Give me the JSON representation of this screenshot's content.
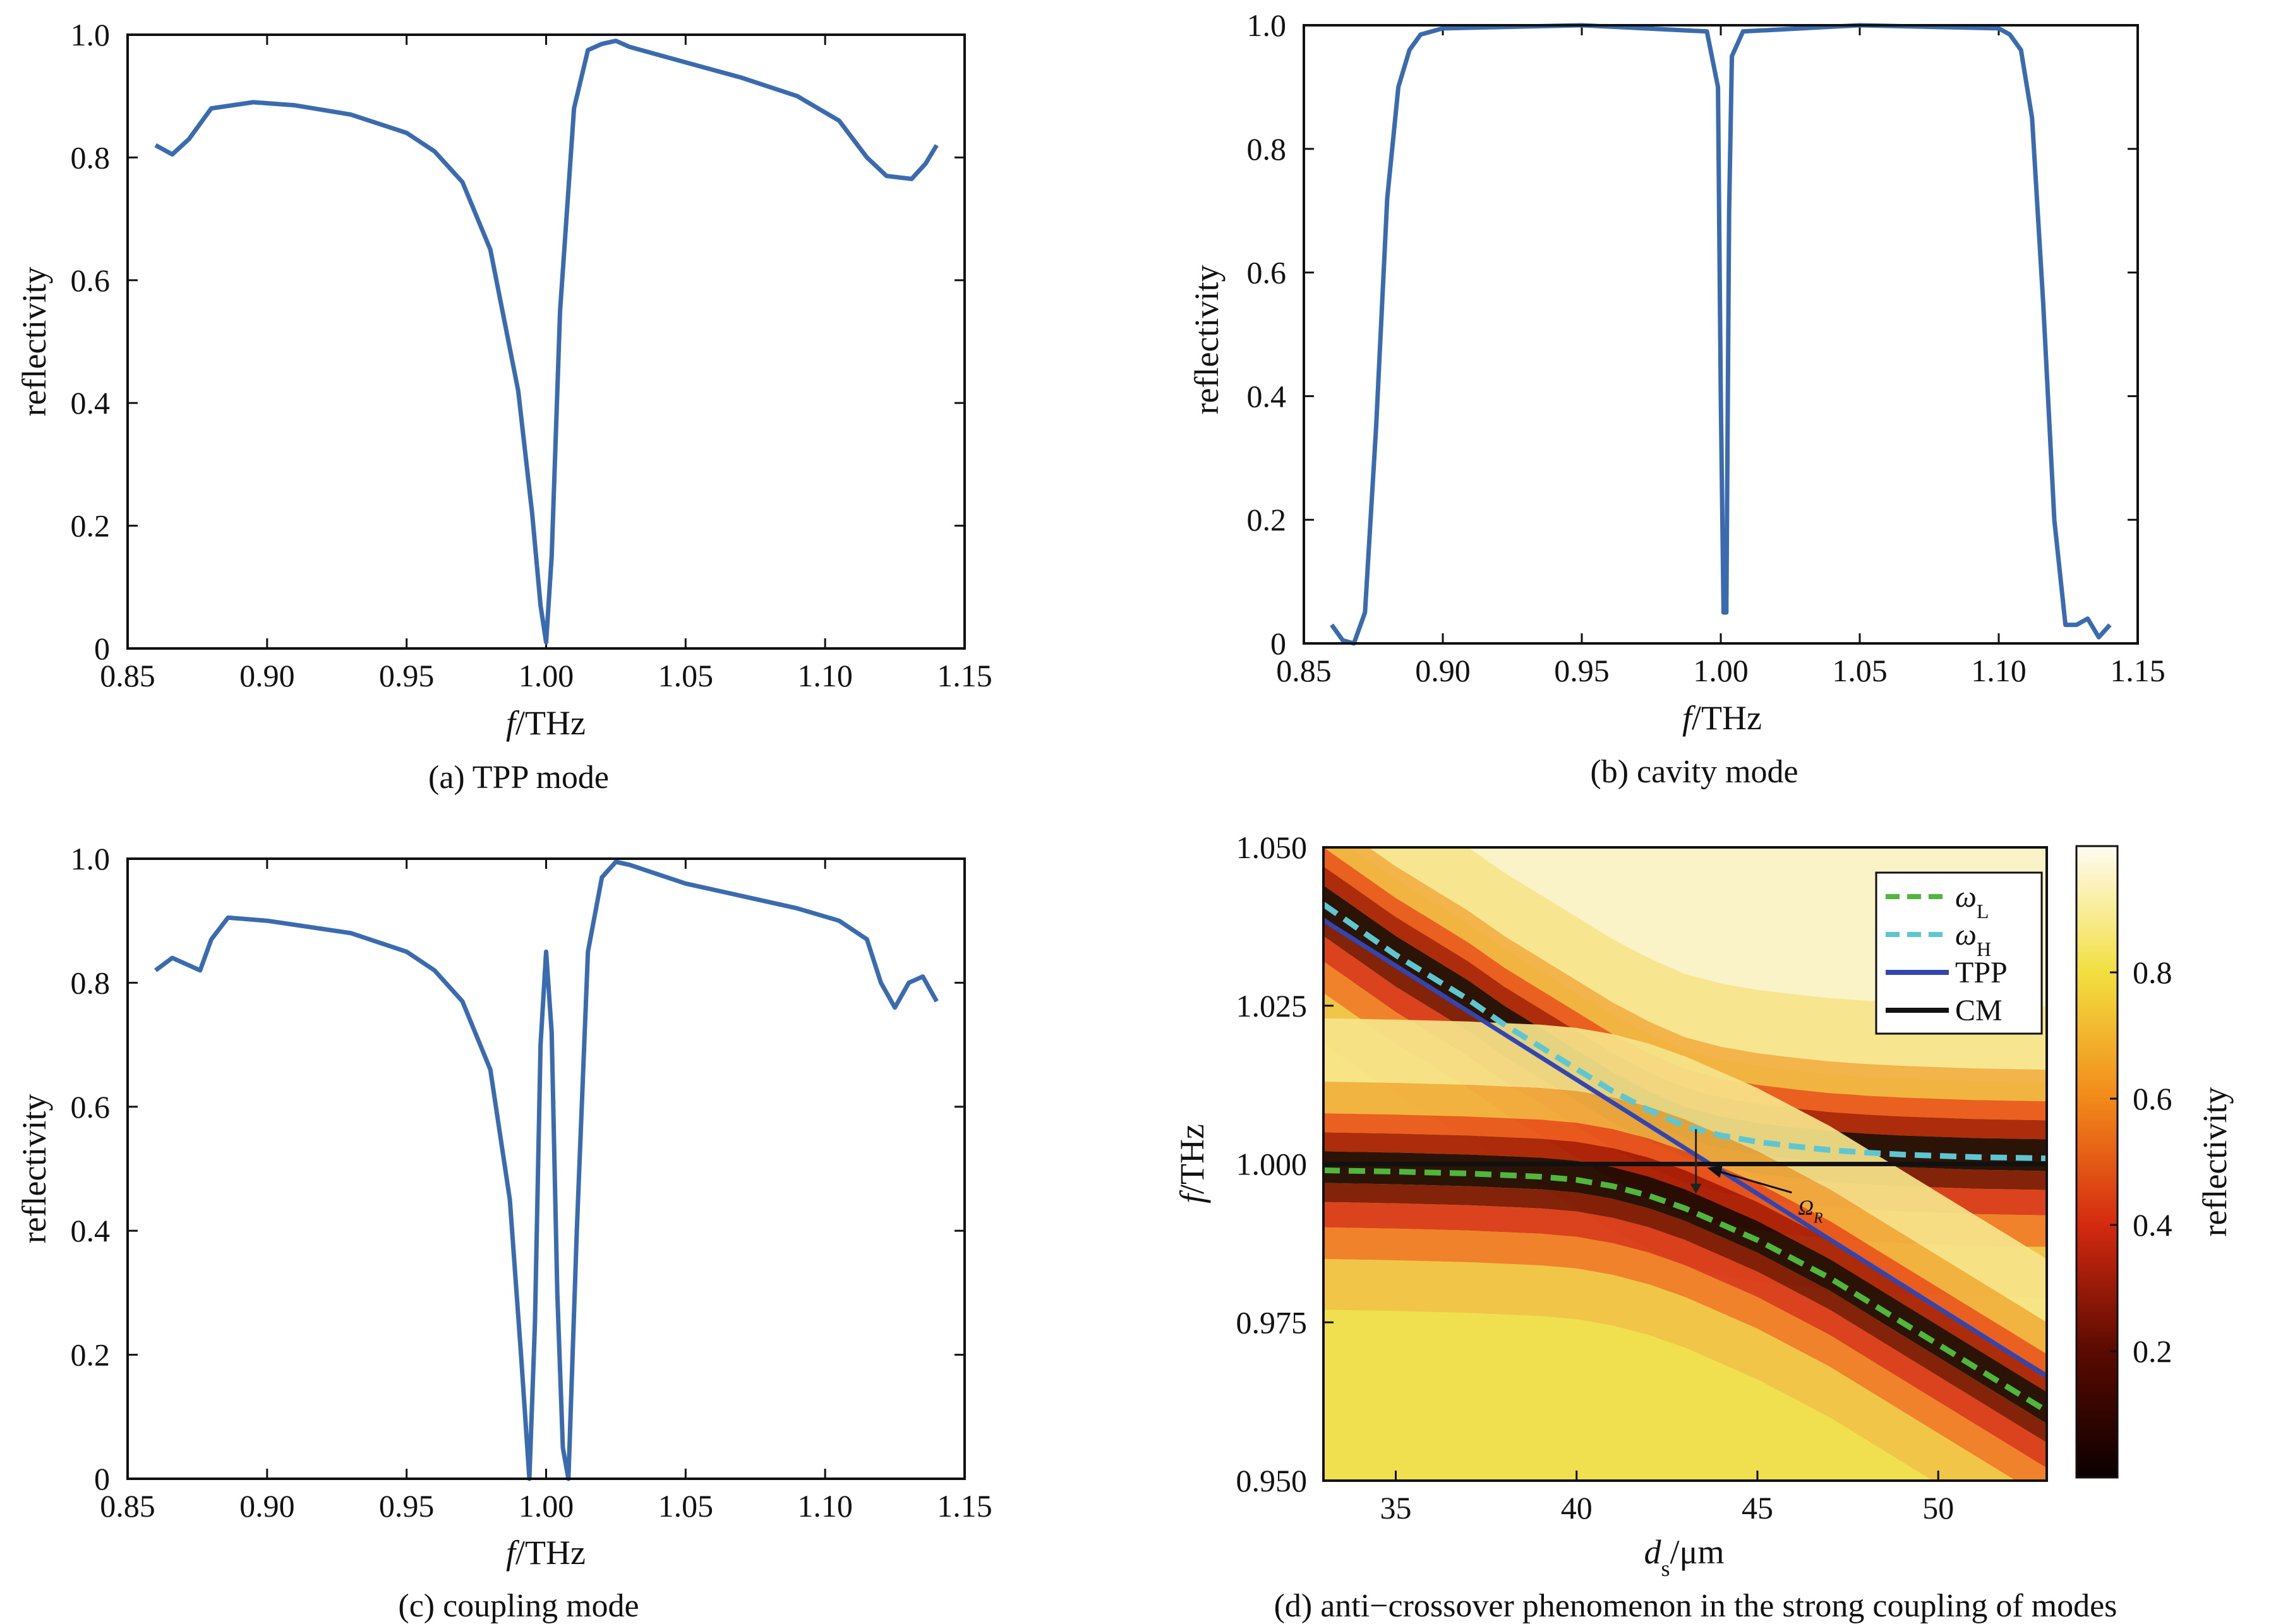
{
  "colors": {
    "curve": "#3A6BAE",
    "tpp_line": "#3346B0",
    "cm_line": "#111111",
    "omega_L": "#4FB83C",
    "omega_H": "#5EC6D0",
    "axis": "#111111"
  },
  "chart_data": [
    {
      "id": "a",
      "type": "line",
      "caption": "(a) TPP mode",
      "xlabel_italic": "f",
      "xlabel_rest": "/THz",
      "ylabel": "reflectivity",
      "xlim": [
        0.85,
        1.15
      ],
      "ylim": [
        0,
        1.0
      ],
      "xticks": [
        "0.85",
        "0.90",
        "0.95",
        "1.00",
        "1.05",
        "1.10",
        "1.15"
      ],
      "yticks": [
        "0",
        "0.2",
        "0.4",
        "0.6",
        "0.8",
        "1.0"
      ],
      "series": [
        {
          "x": [
            0.86,
            0.866,
            0.872,
            0.88,
            0.895,
            0.91,
            0.93,
            0.95,
            0.96,
            0.97,
            0.98,
            0.99,
            0.995,
            0.998,
            1.0,
            1.002,
            1.005,
            1.01,
            1.015,
            1.02,
            1.025,
            1.03,
            1.05,
            1.07,
            1.09,
            1.105,
            1.115,
            1.122,
            1.131,
            1.136,
            1.14
          ],
          "y": [
            0.82,
            0.805,
            0.83,
            0.88,
            0.89,
            0.885,
            0.87,
            0.84,
            0.81,
            0.76,
            0.65,
            0.42,
            0.22,
            0.07,
            0.01,
            0.15,
            0.55,
            0.88,
            0.975,
            0.985,
            0.99,
            0.98,
            0.955,
            0.93,
            0.9,
            0.86,
            0.8,
            0.77,
            0.765,
            0.79,
            0.82
          ]
        }
      ]
    },
    {
      "id": "b",
      "type": "line",
      "caption": "(b) cavity mode",
      "xlabel_italic": "f",
      "xlabel_rest": "/THz",
      "ylabel": "reflectivity",
      "xlim": [
        0.85,
        1.15
      ],
      "ylim": [
        0,
        1.0
      ],
      "xticks": [
        "0.85",
        "0.90",
        "0.95",
        "1.00",
        "1.05",
        "1.10",
        "1.15"
      ],
      "yticks": [
        "0",
        "0.2",
        "0.4",
        "0.6",
        "0.8",
        "1.0"
      ],
      "series": [
        {
          "x": [
            0.86,
            0.864,
            0.868,
            0.872,
            0.876,
            0.88,
            0.884,
            0.888,
            0.892,
            0.9,
            0.95,
            0.995,
            0.999,
            1.0,
            1.001,
            1.002,
            1.003,
            1.004,
            1.008,
            1.05,
            1.1,
            1.104,
            1.108,
            1.112,
            1.116,
            1.12,
            1.124,
            1.128,
            1.132,
            1.136,
            1.14
          ],
          "y": [
            0.03,
            0.005,
            0.0,
            0.05,
            0.35,
            0.72,
            0.9,
            0.96,
            0.985,
            0.995,
            1.0,
            0.99,
            0.9,
            0.4,
            0.05,
            0.05,
            0.7,
            0.95,
            0.99,
            1.0,
            0.995,
            0.985,
            0.96,
            0.85,
            0.55,
            0.2,
            0.03,
            0.03,
            0.04,
            0.01,
            0.03
          ]
        }
      ]
    },
    {
      "id": "c",
      "type": "line",
      "caption": "(c) coupling mode",
      "xlabel_italic": "f",
      "xlabel_rest": "/THz",
      "ylabel": "reflectivity",
      "xlim": [
        0.85,
        1.15
      ],
      "ylim": [
        0,
        1.0
      ],
      "xticks": [
        "0.85",
        "0.90",
        "0.95",
        "1.00",
        "1.05",
        "1.10",
        "1.15"
      ],
      "yticks": [
        "0",
        "0.2",
        "0.4",
        "0.6",
        "0.8",
        "1.0"
      ],
      "series": [
        {
          "x": [
            0.86,
            0.866,
            0.871,
            0.876,
            0.88,
            0.886,
            0.9,
            0.93,
            0.95,
            0.96,
            0.97,
            0.98,
            0.987,
            0.991,
            0.994,
            0.996,
            0.998,
            1.0,
            1.002,
            1.004,
            1.006,
            1.008,
            1.011,
            1.015,
            1.02,
            1.025,
            1.03,
            1.05,
            1.07,
            1.09,
            1.105,
            1.115,
            1.12,
            1.125,
            1.13,
            1.135,
            1.14
          ],
          "y": [
            0.82,
            0.84,
            0.83,
            0.82,
            0.87,
            0.905,
            0.9,
            0.88,
            0.85,
            0.82,
            0.77,
            0.66,
            0.45,
            0.2,
            0.0,
            0.25,
            0.7,
            0.85,
            0.72,
            0.3,
            0.05,
            0.0,
            0.4,
            0.85,
            0.97,
            0.995,
            0.99,
            0.96,
            0.94,
            0.92,
            0.9,
            0.87,
            0.8,
            0.76,
            0.8,
            0.81,
            0.77
          ]
        }
      ]
    },
    {
      "id": "d",
      "type": "heatmap",
      "caption": "(d)  anti−crossover phenomenon in the strong coupling of modes",
      "xlabel_italic": "d",
      "xlabel_sub": "s",
      "xlabel_rest": "/μm",
      "ylabel_italic": "f",
      "ylabel_rest": "/THz",
      "xlim": [
        33,
        53
      ],
      "ylim": [
        0.95,
        1.05
      ],
      "xticks": [
        35,
        40,
        45,
        50
      ],
      "xtick_labels": [
        "35",
        "40",
        "45",
        "50"
      ],
      "yticks": [
        0.95,
        0.975,
        1.0,
        1.025,
        1.05
      ],
      "ytick_labels": [
        "0.950",
        "0.975",
        "1.000",
        "1.025",
        "1.050"
      ],
      "colorbar_label": "reflectivity",
      "colorbar_ticks": [
        0.2,
        0.4,
        0.6,
        0.8
      ],
      "colorbar_tick_labels": [
        "0.2",
        "0.4",
        "0.6",
        "0.8"
      ],
      "colorbar_range": [
        0,
        1
      ],
      "legend_position": "top-right",
      "series": [
        {
          "name_italic": "ω",
          "name_sub": "L",
          "style": "dashed",
          "color": "#4FB83C",
          "x": [
            33,
            35,
            37,
            39,
            40,
            41,
            42,
            43,
            44,
            45,
            46,
            47,
            48,
            49,
            50,
            51,
            52,
            53
          ],
          "y": [
            0.999,
            0.9988,
            0.9985,
            0.998,
            0.9975,
            0.9965,
            0.995,
            0.993,
            0.9905,
            0.988,
            0.985,
            0.982,
            0.9785,
            0.975,
            0.9715,
            0.968,
            0.9645,
            0.961
          ]
        },
        {
          "name_italic": "ω",
          "name_sub": "H",
          "style": "dashed",
          "color": "#5EC6D0",
          "x": [
            33,
            34,
            35,
            36,
            37,
            38,
            39,
            40,
            41,
            42,
            43,
            44,
            45,
            46,
            47,
            48,
            49,
            50,
            51,
            52,
            53
          ],
          "y": [
            1.041,
            1.037,
            1.033,
            1.0295,
            1.026,
            1.022,
            1.0185,
            1.015,
            1.0115,
            1.0085,
            1.006,
            1.0045,
            1.0035,
            1.0028,
            1.0022,
            1.0018,
            1.0015,
            1.0013,
            1.0011,
            1.001,
            1.0009
          ]
        },
        {
          "name": "TPP",
          "style": "solid",
          "color": "#3346B0",
          "x": [
            33,
            53
          ],
          "y": [
            1.0385,
            0.9665
          ]
        },
        {
          "name": "CM",
          "style": "solid",
          "color": "#111111",
          "x": [
            33,
            53
          ],
          "y": [
            1.0,
            1.0
          ]
        }
      ],
      "annotation": {
        "label_greek": "Ω",
        "label_sub": "R",
        "x": 43.3,
        "y_low": 0.9955,
        "y_high": 1.0055,
        "text_x": 46.3,
        "text_y": 0.993
      }
    }
  ]
}
